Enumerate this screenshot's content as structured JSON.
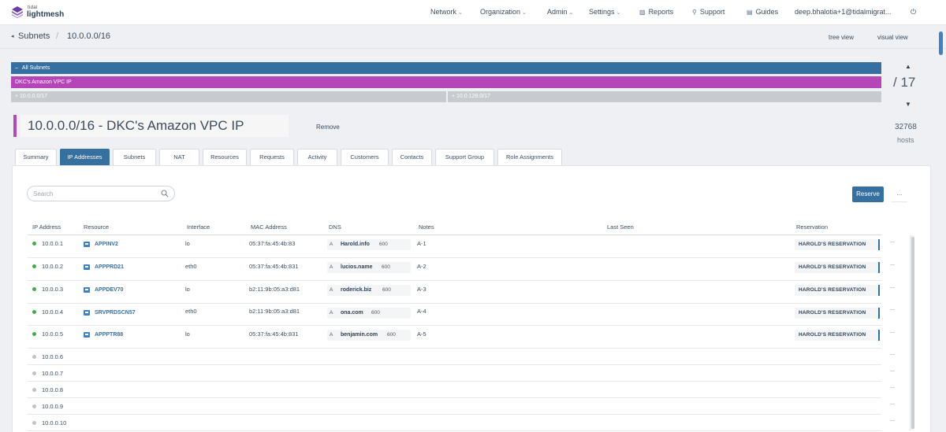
{
  "app": {
    "brand_small": "tidal",
    "brand": "lightmesh"
  },
  "nav": {
    "items": [
      {
        "label": "Network",
        "chevron": true
      },
      {
        "label": "Organization",
        "chevron": true
      },
      {
        "label": "Admin",
        "chevron": true
      },
      {
        "label": "Settings",
        "chevron": true
      },
      {
        "label": "Reports",
        "icon": "bar-chart-icon"
      },
      {
        "label": "Support",
        "icon": "wrench-icon"
      },
      {
        "label": "Guides",
        "icon": "book-icon"
      }
    ],
    "user": "deep.bhalotia+1@tidalmigrat...",
    "power_icon": "power-icon"
  },
  "breadcrumb": {
    "back_glyph": "◂",
    "parent": "Subnets",
    "separator": "/",
    "current": "10.0.0.0/16",
    "views": [
      "tree view",
      "visual view"
    ]
  },
  "tree": {
    "all_label": "All Subnets",
    "all_glyph": "–",
    "vpc_label": "DKC's Amazon VPC IP",
    "children": [
      "+ 10.0.0.0/17",
      "+ 10.0.128.0/17"
    ],
    "counter": "/ 17",
    "up_glyph": "▲",
    "down_glyph": "▼"
  },
  "subnet": {
    "title": "10.0.0.0/16 - DKC's Amazon VPC IP",
    "remove_label": "Remove",
    "hosts_count": "32768",
    "hosts_label": "hosts",
    "accent_color": "#b446b8"
  },
  "tabs": [
    {
      "label": "Summary",
      "active": false
    },
    {
      "label": "IP Addresses",
      "active": true
    },
    {
      "label": "Subnets",
      "active": false
    },
    {
      "label": "NAT",
      "active": false
    },
    {
      "label": "Resources",
      "active": false
    },
    {
      "label": "Requests",
      "active": false
    },
    {
      "label": "Activity",
      "active": false
    },
    {
      "label": "Customers",
      "active": false
    },
    {
      "label": "Contacts",
      "active": false
    },
    {
      "label": "Support Group",
      "active": false
    },
    {
      "label": "Role Assignments",
      "active": false
    }
  ],
  "toolbar": {
    "search_placeholder": "Search",
    "reserve_label": "Reserve",
    "more_label": "..."
  },
  "table": {
    "headers": [
      "IP Address",
      "Resource",
      "Interface",
      "MAC Address",
      "DNS",
      "Notes",
      "Last Seen",
      "Reservation"
    ],
    "row_more": "...",
    "rows": [
      {
        "ip": "10.0.0.1",
        "status": "active",
        "resource": "APPINV2",
        "interface": "lo",
        "mac": "05:37:fa:45:4b:83",
        "dns_type": "A",
        "dns_name": "Harold.info",
        "dns_ttl": "600",
        "notes": "A-1",
        "last_seen": "",
        "reservation": "HAROLD'S RESERVATION"
      },
      {
        "ip": "10.0.0.2",
        "status": "active",
        "resource": "APPPRD21",
        "interface": "eth0",
        "mac": "05:37:fa:45:4b:831",
        "dns_type": "A",
        "dns_name": "lucios.name",
        "dns_ttl": "600",
        "notes": "A-2",
        "last_seen": "",
        "reservation": "HAROLD'S RESERVATION"
      },
      {
        "ip": "10.0.0.3",
        "status": "active",
        "resource": "APPDEV70",
        "interface": "lo",
        "mac": "b2:11:9b:05:a3:d81",
        "dns_type": "A",
        "dns_name": "roderick.biz",
        "dns_ttl": "600",
        "notes": "A-3",
        "last_seen": "",
        "reservation": "HAROLD'S RESERVATION"
      },
      {
        "ip": "10.0.0.4",
        "status": "active",
        "resource": "SRVPRDSCN57",
        "interface": "eth0",
        "mac": "b2:11:9b:05:a3:d81",
        "dns_type": "A",
        "dns_name": "ona.com",
        "dns_ttl": "600",
        "notes": "A-4",
        "last_seen": "",
        "reservation": "HAROLD'S RESERVATION"
      },
      {
        "ip": "10.0.0.5",
        "status": "active",
        "resource": "APPPTR88",
        "interface": "lo",
        "mac": "05:37:fa:45:4b:831",
        "dns_type": "A",
        "dns_name": "benjamin.com",
        "dns_ttl": "600",
        "notes": "A-5",
        "last_seen": "",
        "reservation": "HAROLD'S RESERVATION"
      },
      {
        "ip": "10.0.0.6",
        "status": "free"
      },
      {
        "ip": "10.0.0.7",
        "status": "free"
      },
      {
        "ip": "10.0.0.8",
        "status": "free"
      },
      {
        "ip": "10.0.0.9",
        "status": "free"
      },
      {
        "ip": "10.0.0.10",
        "status": "free"
      }
    ]
  },
  "colors": {
    "primary": "#3570a0",
    "accent": "#b446b8",
    "active_dot": "#3fae49",
    "free_dot": "#bfc4c8"
  }
}
